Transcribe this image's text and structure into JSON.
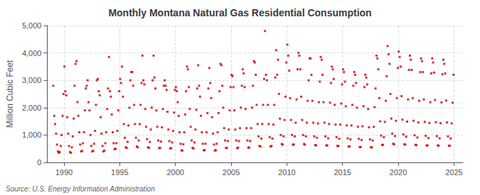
{
  "chart_data": {
    "type": "scatter",
    "title": "Monthly Montana Natural Gas Residential Consumption",
    "ylabel": "Million Cubic Feet",
    "annotations": [
      "Source: U.S. Energy Information Administration"
    ],
    "color": "#cc0000",
    "marker": "square",
    "grid": true,
    "xlim": [
      1988.5,
      2025.8
    ],
    "ylim": [
      0,
      5000
    ],
    "xticks": [
      1990,
      1995,
      2000,
      2005,
      2010,
      2015,
      2020,
      2025
    ],
    "yticks": [
      0,
      {
        "value": 1000,
        "label": "1,000"
      },
      {
        "value": 2000,
        "label": "2,000"
      },
      {
        "value": 3000,
        "label": "3,000"
      },
      {
        "value": 4000,
        "label": "4,000"
      },
      {
        "value": 5000,
        "label": "5,000"
      }
    ],
    "x": [
      1989.0417,
      1989.125,
      1989.2083,
      1989.2917,
      1989.375,
      1989.4583,
      1989.5417,
      1989.625,
      1989.7083,
      1989.7917,
      1989.875,
      1989.9583,
      1990.0417,
      1990.125,
      1990.2083,
      1990.2917,
      1990.375,
      1990.4583,
      1990.5417,
      1990.625,
      1990.7083,
      1990.7917,
      1990.875,
      1990.9583,
      1991.0417,
      1991.125,
      1991.2083,
      1991.2917,
      1991.375,
      1991.4583,
      1991.5417,
      1991.625,
      1991.7083,
      1991.7917,
      1991.875,
      1991.9583,
      1992.0417,
      1992.125,
      1992.2083,
      1992.2917,
      1992.375,
      1992.4583,
      1992.5417,
      1992.625,
      1992.7083,
      1992.7917,
      1992.875,
      1992.9583,
      1993.0417,
      1993.125,
      1993.2083,
      1993.2917,
      1993.375,
      1993.4583,
      1993.5417,
      1993.625,
      1993.7083,
      1993.7917,
      1993.875,
      1993.9583,
      1994.0417,
      1994.125,
      1994.2083,
      1994.2917,
      1994.375,
      1994.4583,
      1994.5417,
      1994.625,
      1994.7083,
      1994.7917,
      1994.875,
      1994.9583,
      1995.0417,
      1995.125,
      1995.2083,
      1995.2917,
      1995.375,
      1995.4583,
      1995.5417,
      1995.625,
      1995.7083,
      1995.7917,
      1995.875,
      1995.9583,
      1996.0417,
      1996.125,
      1996.2083,
      1996.2917,
      1996.375,
      1996.4583,
      1996.5417,
      1996.625,
      1996.7083,
      1996.7917,
      1996.875,
      1996.9583,
      1997.0417,
      1997.125,
      1997.2083,
      1997.2917,
      1997.375,
      1997.4583,
      1997.5417,
      1997.625,
      1997.7083,
      1997.7917,
      1997.875,
      1997.9583,
      1998.0417,
      1998.125,
      1998.2083,
      1998.2917,
      1998.375,
      1998.4583,
      1998.5417,
      1998.625,
      1998.7083,
      1998.7917,
      1998.875,
      1998.9583,
      1999.0417,
      1999.125,
      1999.2083,
      1999.2917,
      1999.375,
      1999.4583,
      1999.5417,
      1999.625,
      1999.7083,
      1999.7917,
      1999.875,
      1999.9583,
      2000.0417,
      2000.125,
      2000.2083,
      2000.2917,
      2000.375,
      2000.4583,
      2000.5417,
      2000.625,
      2000.7083,
      2000.7917,
      2000.875,
      2000.9583,
      2001.0417,
      2001.125,
      2001.2083,
      2001.2917,
      2001.375,
      2001.4583,
      2001.5417,
      2001.625,
      2001.7083,
      2001.7917,
      2001.875,
      2001.9583,
      2002.0417,
      2002.125,
      2002.2083,
      2002.2917,
      2002.375,
      2002.4583,
      2002.5417,
      2002.625,
      2002.7083,
      2002.7917,
      2002.875,
      2002.9583,
      2003.0417,
      2003.125,
      2003.2083,
      2003.2917,
      2003.375,
      2003.4583,
      2003.5417,
      2003.625,
      2003.7083,
      2003.7917,
      2003.875,
      2003.9583,
      2004.0417,
      2004.125,
      2004.2083,
      2004.2917,
      2004.375,
      2004.4583,
      2004.5417,
      2004.625,
      2004.7083,
      2004.7917,
      2004.875,
      2004.9583,
      2005.0417,
      2005.125,
      2005.2083,
      2005.2917,
      2005.375,
      2005.4583,
      2005.5417,
      2005.625,
      2005.7083,
      2005.7917,
      2005.875,
      2005.9583,
      2006.0417,
      2006.125,
      2006.2083,
      2006.2917,
      2006.375,
      2006.4583,
      2006.5417,
      2006.625,
      2006.7083,
      2006.7917,
      2006.875,
      2006.9583,
      2007.0417,
      2007.125,
      2007.2083,
      2007.2917,
      2007.375,
      2007.4583,
      2007.5417,
      2007.625,
      2007.7083,
      2007.7917,
      2007.875,
      2007.9583,
      2008.0417,
      2008.125,
      2008.2083,
      2008.2917,
      2008.375,
      2008.4583,
      2008.5417,
      2008.625,
      2008.7083,
      2008.7917,
      2008.875,
      2008.9583,
      2009.0417,
      2009.125,
      2009.2083,
      2009.2917,
      2009.375,
      2009.4583,
      2009.5417,
      2009.625,
      2009.7083,
      2009.7917,
      2009.875,
      2009.9583,
      2010.0417,
      2010.125,
      2010.2083,
      2010.2917,
      2010.375,
      2010.4583,
      2010.5417,
      2010.625,
      2010.7083,
      2010.7917,
      2010.875,
      2010.9583,
      2011.0417,
      2011.125,
      2011.2083,
      2011.2917,
      2011.375,
      2011.4583,
      2011.5417,
      2011.625,
      2011.7083,
      2011.7917,
      2011.875,
      2011.9583,
      2012.0417,
      2012.125,
      2012.2083,
      2012.2917,
      2012.375,
      2012.4583,
      2012.5417,
      2012.625,
      2012.7083,
      2012.7917,
      2012.875,
      2012.9583,
      2013.0417,
      2013.125,
      2013.2083,
      2013.2917,
      2013.375,
      2013.4583,
      2013.5417,
      2013.625,
      2013.7083,
      2013.7917,
      2013.875,
      2013.9583,
      2014.0417,
      2014.125,
      2014.2083,
      2014.2917,
      2014.375,
      2014.4583,
      2014.5417,
      2014.625,
      2014.7083,
      2014.7917,
      2014.875,
      2014.9583,
      2015.0417,
      2015.125,
      2015.2083,
      2015.2917,
      2015.375,
      2015.4583,
      2015.5417,
      2015.625,
      2015.7083,
      2015.7917,
      2015.875,
      2015.9583,
      2016.0417,
      2016.125,
      2016.2083,
      2016.2917,
      2016.375,
      2016.4583,
      2016.5417,
      2016.625,
      2016.7083,
      2016.7917,
      2016.875,
      2016.9583,
      2017.0417,
      2017.125,
      2017.2083,
      2017.2917,
      2017.375,
      2017.4583,
      2017.5417,
      2017.625,
      2017.7083,
      2017.7917,
      2017.875,
      2017.9583,
      2018.0417,
      2018.125,
      2018.2083,
      2018.2917,
      2018.375,
      2018.4583,
      2018.5417,
      2018.625,
      2018.7083,
      2018.7917,
      2018.875,
      2018.9583,
      2019.0417,
      2019.125,
      2019.2083,
      2019.2917,
      2019.375,
      2019.4583,
      2019.5417,
      2019.625,
      2019.7083,
      2019.7917,
      2019.875,
      2019.9583,
      2020.0417,
      2020.125,
      2020.2083,
      2020.2917,
      2020.375,
      2020.4583,
      2020.5417,
      2020.625,
      2020.7083,
      2020.7917,
      2020.875,
      2020.9583,
      2021.0417,
      2021.125,
      2021.2083,
      2021.2917,
      2021.375,
      2021.4583,
      2021.5417,
      2021.625,
      2021.7083,
      2021.7917,
      2021.875,
      2021.9583,
      2022.0417,
      2022.125,
      2022.2083,
      2022.2917,
      2022.375,
      2022.4583,
      2022.5417,
      2022.625,
      2022.7083,
      2022.7917,
      2022.875,
      2022.9583,
      2023.0417,
      2023.125,
      2023.2083,
      2023.2917,
      2023.375,
      2023.4583,
      2023.5417,
      2023.625,
      2023.7083,
      2023.7917,
      2023.875,
      2023.9583,
      2024.0417,
      2024.125,
      2024.2083,
      2024.2917,
      2024.375,
      2024.4583,
      2024.5417,
      2024.625,
      2024.7083,
      2024.7917,
      2024.875,
      2024.9583
    ],
    "values": [
      2800,
      1700,
      1400,
      1050,
      650,
      400,
      350,
      380,
      600,
      1000,
      1700,
      2500,
      3500,
      2600,
      2450,
      1650,
      1050,
      600,
      380,
      350,
      550,
      950,
      1600,
      2800,
      3600,
      3700,
      2200,
      1700,
      1100,
      650,
      400,
      420,
      700,
      1100,
      1900,
      2700,
      2800,
      3000,
      2200,
      1900,
      1000,
      600,
      400,
      420,
      680,
      1150,
      2100,
      3000,
      3050,
      2600,
      2450,
      1650,
      1050,
      600,
      400,
      430,
      700,
      1100,
      1950,
      2700,
      3850,
      2600,
      2400,
      1750,
      1100,
      700,
      480,
      500,
      700,
      1150,
      1900,
      2600,
      3050,
      2900,
      3500,
      2400,
      1400,
      900,
      550,
      530,
      750,
      1350,
      2000,
      3000,
      3300,
      3300,
      2800,
      2100,
      1400,
      900,
      580,
      550,
      800,
      1400,
      2100,
      2900,
      3900,
      3000,
      2850,
      1950,
      1300,
      850,
      550,
      530,
      750,
      1200,
      2000,
      3000,
      3900,
      3100,
      2700,
      1900,
      1300,
      800,
      520,
      530,
      760,
      1280,
      1950,
      2800,
      3000,
      2800,
      2650,
      1850,
      1200,
      780,
      510,
      520,
      730,
      1150,
      1820,
      2650,
      2750,
      2600,
      2200,
      1700,
      1100,
      680,
      440,
      430,
      660,
      1100,
      1750,
      2600,
      3500,
      3400,
      2750,
      1950,
      1300,
      800,
      530,
      510,
      730,
      1200,
      1920,
      2700,
      3550,
      2800,
      2400,
      1700,
      1100,
      680,
      440,
      450,
      680,
      1100,
      1800,
      2700,
      3450,
      2900,
      2350,
      1650,
      1050,
      650,
      430,
      450,
      680,
      1100,
      1800,
      2600,
      3600,
      3550,
      2800,
      2000,
      1250,
      800,
      530,
      530,
      780,
      1200,
      1900,
      2750,
      3200,
      3150,
      2750,
      1900,
      1200,
      800,
      520,
      540,
      780,
      1250,
      2000,
      2800,
      3400,
      3250,
      2750,
      1950,
      1250,
      800,
      540,
      540,
      780,
      1250,
      2000,
      2800,
      3700,
      3650,
      3200,
      2100,
      1400,
      950,
      600,
      580,
      870,
      1400,
      2100,
      3050,
      4800,
      3200,
      3000,
      2100,
      1400,
      920,
      580,
      600,
      870,
      1380,
      2100,
      3100,
      4100,
      3200,
      3750,
      2500,
      1600,
      1000,
      670,
      650,
      950,
      1550,
      2400,
      3650,
      4300,
      3900,
      3350,
      2350,
      1550,
      1000,
      650,
      650,
      950,
      1450,
      2300,
      3400,
      4000,
      3900,
      3400,
      2400,
      1550,
      1000,
      670,
      650,
      950,
      1450,
      2250,
      3000,
      3800,
      3800,
      3200,
      2250,
      1450,
      950,
      630,
      620,
      900,
      1420,
      2200,
      2950,
      3850,
      3750,
      3200,
      2200,
      1450,
      950,
      620,
      620,
      880,
      1400,
      2180,
      2900,
      3500,
      3400,
      3050,
      2100,
      1380,
      920,
      600,
      600,
      860,
      1380,
      2150,
      2850,
      3400,
      3300,
      2950,
      2050,
      1350,
      880,
      580,
      580,
      840,
      1350,
      2100,
      2800,
      3300,
      3200,
      2900,
      2000,
      1300,
      860,
      560,
      560,
      820,
      1320,
      2050,
      2750,
      3200,
      3100,
      2850,
      1950,
      1280,
      840,
      550,
      550,
      800,
      1300,
      2020,
      2700,
      3900,
      3800,
      3400,
      2350,
      1500,
      980,
      640,
      640,
      920,
      1480,
      2250,
      3150,
      4250,
      3950,
      3600,
      2500,
      1600,
      1050,
      680,
      660,
      960,
      1520,
      2350,
      3450,
      4050,
      3850,
      3500,
      2420,
      1560,
      1020,
      660,
      650,
      940,
      1490,
      2300,
      3380,
      3900,
      3750,
      3380,
      2350,
      1520,
      990,
      640,
      630,
      910,
      1460,
      2250,
      3300,
      3800,
      3700,
      3300,
      2300,
      1480,
      970,
      620,
      620,
      890,
      1440,
      2200,
      3250,
      3800,
      3650,
      3280,
      2280,
      1470,
      960,
      620,
      610,
      880,
      1430,
      2190,
      3220,
      3750,
      3600,
      3250,
      2260,
      1460,
      950,
      610,
      605,
      875,
      1425,
      2180,
      3200
    ]
  }
}
